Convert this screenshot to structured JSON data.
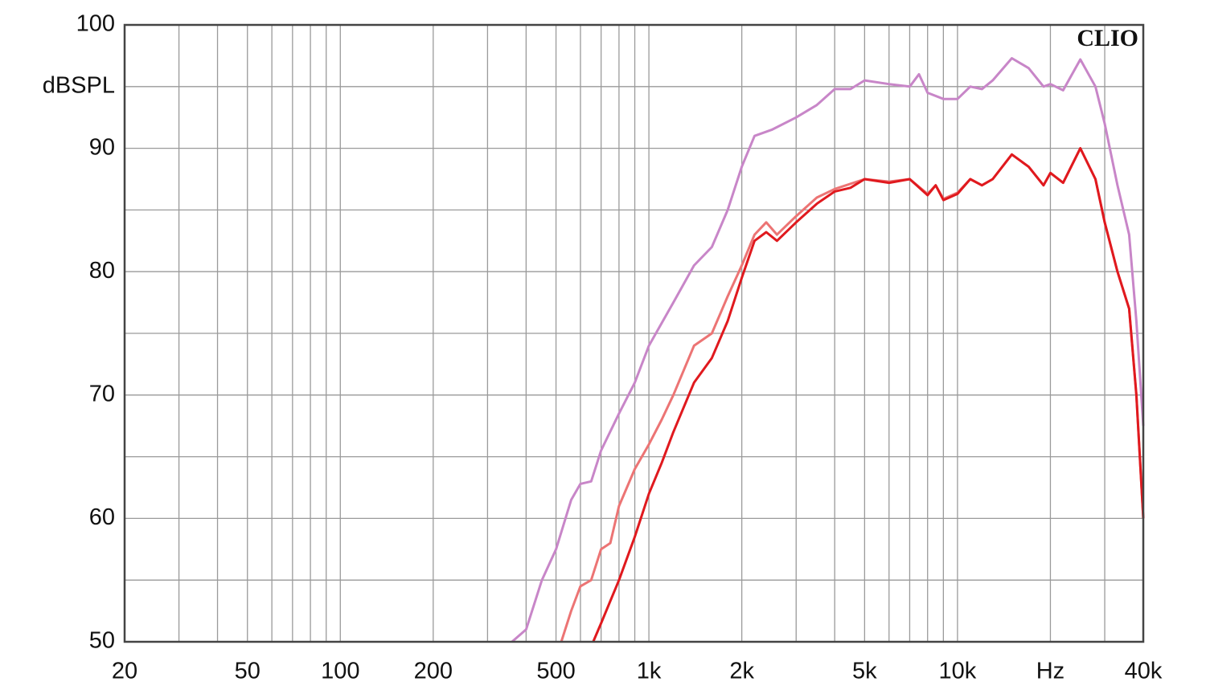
{
  "chart_data": {
    "type": "line",
    "annotation": "CLIO",
    "log_x": true,
    "grid": true,
    "xlim": [
      20,
      40000
    ],
    "ylim": [
      50,
      100
    ],
    "xticks": [
      20,
      50,
      100,
      200,
      500,
      {
        "value": 1000,
        "label": "1k"
      },
      {
        "value": 2000,
        "label": "2k"
      },
      {
        "value": 5000,
        "label": "5k"
      },
      {
        "value": 10000,
        "label": "10k"
      },
      {
        "value": 20000,
        "label": "Hz"
      },
      {
        "value": 40000,
        "label": "40k"
      }
    ],
    "xminor": [
      30,
      40,
      60,
      70,
      80,
      90,
      300,
      400,
      600,
      700,
      800,
      900,
      3000,
      4000,
      6000,
      7000,
      8000,
      9000,
      30000
    ],
    "yticks": [
      50,
      60,
      70,
      80,
      90,
      {
        "value": 95,
        "label": "dBSPL"
      },
      100
    ],
    "yminor": [
      55,
      65,
      75,
      85
    ],
    "series": [
      {
        "color": "#c886c8",
        "x": [
          360,
          400,
          450,
          500,
          560,
          600,
          650,
          700,
          800,
          900,
          1000,
          1200,
          1400,
          1600,
          1800,
          2000,
          2200,
          2500,
          3000,
          3500,
          4000,
          4500,
          5000,
          6000,
          7000,
          7500,
          8000,
          9000,
          10000,
          11000,
          12000,
          13000,
          15000,
          17000,
          19000,
          20000,
          22000,
          25000,
          28000,
          30000,
          33000,
          36000,
          38000,
          40000
        ],
        "values": [
          50,
          51,
          55,
          57.5,
          61.5,
          62.8,
          63,
          65.5,
          68.5,
          71,
          74,
          77.5,
          80.5,
          82,
          85,
          88.5,
          91,
          91.5,
          92.5,
          93.5,
          94.8,
          94.8,
          95.5,
          95.2,
          95,
          96,
          94.5,
          94,
          94,
          95,
          94.8,
          95.5,
          97.3,
          96.5,
          95,
          95.2,
          94.7,
          97.2,
          95,
          92,
          87,
          83,
          76,
          67.5
        ]
      },
      {
        "color": "#ec7474",
        "x": [
          520,
          560,
          600,
          650,
          700,
          750,
          800,
          900,
          1000,
          1100,
          1200,
          1400,
          1600,
          1800,
          2000,
          2200,
          2400,
          2600,
          3000,
          3500,
          4000,
          5000,
          6000,
          7000,
          8000,
          8500,
          9000,
          10000,
          11000,
          12000,
          13000,
          15000,
          17000,
          19000,
          20000,
          22000,
          25000,
          28000,
          30000,
          33000,
          36000,
          38000,
          40000
        ],
        "values": [
          50,
          52.5,
          54.5,
          55,
          57.5,
          58,
          61,
          64,
          66,
          68,
          70,
          74,
          75,
          78,
          80.5,
          83,
          84,
          83,
          84.5,
          86,
          86.7,
          87.5,
          87.3,
          87.5,
          86.3,
          87,
          85.9,
          86.4,
          87.5,
          87,
          87.5,
          89.5,
          88.5,
          87,
          88,
          87.2,
          90,
          87.5,
          84,
          80,
          77,
          70,
          60
        ]
      },
      {
        "color": "#e0191e",
        "x": [
          660,
          700,
          800,
          900,
          1000,
          1100,
          1200,
          1400,
          1600,
          1800,
          2000,
          2200,
          2400,
          2600,
          3000,
          3500,
          4000,
          4500,
          5000,
          6000,
          7000,
          8000,
          8500,
          9000,
          10000,
          11000,
          12000,
          13000,
          15000,
          17000,
          19000,
          20000,
          22000,
          25000,
          28000,
          30000,
          33000,
          36000,
          38000,
          40000
        ],
        "values": [
          50,
          51.5,
          55,
          58.5,
          62,
          64.5,
          67,
          71,
          73,
          76,
          79.5,
          82.5,
          83.2,
          82.5,
          84,
          85.5,
          86.5,
          86.8,
          87.5,
          87.2,
          87.5,
          86.2,
          87,
          85.8,
          86.3,
          87.5,
          87,
          87.5,
          89.5,
          88.5,
          87,
          88,
          87.2,
          90,
          87.5,
          84,
          80,
          77,
          70,
          60
        ]
      }
    ]
  }
}
